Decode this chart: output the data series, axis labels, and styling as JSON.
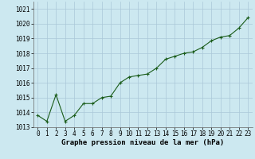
{
  "x": [
    0,
    1,
    2,
    3,
    4,
    5,
    6,
    7,
    8,
    9,
    10,
    11,
    12,
    13,
    14,
    15,
    16,
    17,
    18,
    19,
    20,
    21,
    22,
    23
  ],
  "y": [
    1013.8,
    1013.4,
    1015.2,
    1013.4,
    1013.8,
    1014.6,
    1014.6,
    1015.0,
    1015.1,
    1016.0,
    1016.4,
    1016.5,
    1016.6,
    1017.0,
    1017.6,
    1017.8,
    1018.0,
    1018.1,
    1018.4,
    1018.85,
    1019.1,
    1019.2,
    1019.7,
    1020.4
  ],
  "line_color": "#1a5c1a",
  "marker": "+",
  "bg_color": "#cce8f0",
  "grid_color": "#aac8d8",
  "xlabel": "Graphe pression niveau de la mer (hPa)",
  "ylim": [
    1013,
    1021.5
  ],
  "yticks": [
    1013,
    1014,
    1015,
    1016,
    1017,
    1018,
    1019,
    1020,
    1021
  ],
  "xlim": [
    -0.5,
    23.5
  ],
  "xticks": [
    0,
    1,
    2,
    3,
    4,
    5,
    6,
    7,
    8,
    9,
    10,
    11,
    12,
    13,
    14,
    15,
    16,
    17,
    18,
    19,
    20,
    21,
    22,
    23
  ],
  "xlabel_fontsize": 6.5,
  "tick_fontsize": 5.5,
  "line_width": 0.8,
  "marker_size": 3.5,
  "marker_edge_width": 0.8
}
